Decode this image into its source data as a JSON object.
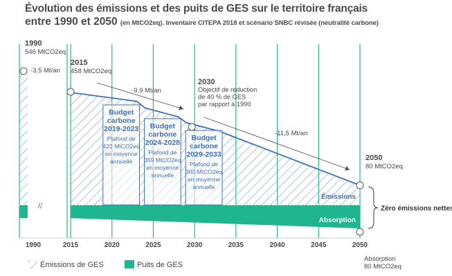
{
  "title": {
    "line1": "Évolution des émissions et des puits de GES sur le territoire français",
    "line2_main": "entre 1990 et 2050 ",
    "line2_sub": "(en MtCO2eq). Inventaire CITEPA 2018 et scénario SNBC révisée (neutralité carbone)"
  },
  "colors": {
    "emissions": "#3d6fb5",
    "absorption": "#1fb58f",
    "grid": "#27b98a",
    "text": "#4a4a4a",
    "budget_text": "#3d6fb5"
  },
  "chart_data": {
    "type": "area",
    "x_ticks": [
      "1990",
      "2015",
      "2020",
      "2025",
      "2030",
      "2035",
      "2040",
      "2045",
      "2050"
    ],
    "emissions": {
      "name": "Émissions de GES",
      "x": [
        2015,
        2019,
        2023,
        2024,
        2028,
        2029,
        2033,
        2050
      ],
      "y": [
        458,
        440,
        422,
        395,
        359,
        335,
        300,
        80
      ]
    },
    "emissions_1990": {
      "x": 1990,
      "y": 546
    },
    "absorption": {
      "name": "Puits de GES",
      "x": [
        1990,
        2015,
        2050
      ],
      "y": [
        -45,
        -45,
        -80
      ]
    },
    "ylim": [
      -100,
      620
    ],
    "points": [
      {
        "year": "1990",
        "value": "546 MtCO2eq"
      },
      {
        "year": "2015",
        "value": "458 MtCO2eq"
      },
      {
        "year": "2050",
        "value": "80 MtCO2eq"
      }
    ],
    "rates": [
      {
        "label": "-3,5 Mt/an"
      },
      {
        "label": "-9,9 Mt/an"
      },
      {
        "label": "-11,5 Mt/an"
      }
    ],
    "objective": {
      "year": "2030",
      "lines": [
        "Objectif de réduction",
        "de 40 % de GES",
        "par rapport à 1990"
      ]
    },
    "budgets": [
      {
        "name": [
          "Budget",
          "carbone",
          "2019-2023"
        ],
        "desc": [
          "Plafond de",
          "422 MtCO2eq",
          "en moyenne",
          "annuelle"
        ],
        "x0": 2019,
        "x1": 2023,
        "ceiling": 422
      },
      {
        "name": [
          "Budget",
          "carbone",
          "2024-2028"
        ],
        "desc": [
          "359 MtCO2eq",
          "en moyenne",
          "annuelle"
        ],
        "prefix": "Plafond de",
        "x0": 2024,
        "x1": 2028,
        "ceiling": 359
      },
      {
        "name": [
          "Budget",
          "carbone",
          "2029-2033"
        ],
        "desc": [
          "Plafond de",
          "300 MtCO2eq",
          "en moyenne",
          "annuelle"
        ],
        "x0": 2029,
        "x1": 2033,
        "ceiling": 300
      }
    ],
    "series_labels": {
      "emissions": "Émissions",
      "absorption": "Absorption",
      "neutral": "Zéro émissions nettes"
    },
    "absorption_2050": {
      "label": "Absorption",
      "value": "80 MtCO2eq"
    },
    "legend": [
      {
        "label": "Émissions de GES",
        "style": "hatch"
      },
      {
        "label": "Puits de GES",
        "style": "solid"
      }
    ]
  }
}
